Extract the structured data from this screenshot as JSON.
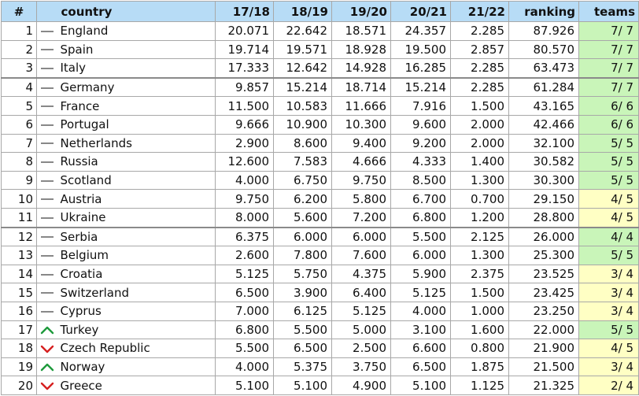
{
  "headers": {
    "num": "#",
    "country": "country",
    "s1718": "17/18",
    "s1819": "18/19",
    "s1920": "19/20",
    "s2021": "20/21",
    "s2122": "21/22",
    "ranking": "ranking",
    "teams": "teams"
  },
  "colors": {
    "header_bg": "#b7dcf6",
    "teams_full": "#c9f5b9",
    "teams_partial": "#ffffc4",
    "trend_same": "#888888",
    "trend_up": "#1e9a3c",
    "trend_down": "#d62020"
  },
  "rows": [
    {
      "num": "1",
      "trend": "same",
      "country": "England",
      "s1718": "20.071",
      "s1819": "22.642",
      "s1920": "18.571",
      "s2021": "24.357",
      "s2122": "2.285",
      "ranking": "87.926",
      "teams": "7/ 7",
      "teams_status": "full"
    },
    {
      "num": "2",
      "trend": "same",
      "country": "Spain",
      "s1718": "19.714",
      "s1819": "19.571",
      "s1920": "18.928",
      "s2021": "19.500",
      "s2122": "2.857",
      "ranking": "80.570",
      "teams": "7/ 7",
      "teams_status": "full"
    },
    {
      "num": "3",
      "trend": "same",
      "country": "Italy",
      "s1718": "17.333",
      "s1819": "12.642",
      "s1920": "14.928",
      "s2021": "16.285",
      "s2122": "2.285",
      "ranking": "63.473",
      "teams": "7/ 7",
      "teams_status": "full"
    },
    {
      "num": "4",
      "trend": "same",
      "country": "Germany",
      "s1718": "9.857",
      "s1819": "15.214",
      "s1920": "18.714",
      "s2021": "15.214",
      "s2122": "2.285",
      "ranking": "61.284",
      "teams": "7/ 7",
      "teams_status": "full"
    },
    {
      "num": "5",
      "trend": "same",
      "country": "France",
      "s1718": "11.500",
      "s1819": "10.583",
      "s1920": "11.666",
      "s2021": "7.916",
      "s2122": "1.500",
      "ranking": "43.165",
      "teams": "6/ 6",
      "teams_status": "full"
    },
    {
      "num": "6",
      "trend": "same",
      "country": "Portugal",
      "s1718": "9.666",
      "s1819": "10.900",
      "s1920": "10.300",
      "s2021": "9.600",
      "s2122": "2.000",
      "ranking": "42.466",
      "teams": "6/ 6",
      "teams_status": "full"
    },
    {
      "num": "7",
      "trend": "same",
      "country": "Netherlands",
      "s1718": "2.900",
      "s1819": "8.600",
      "s1920": "9.400",
      "s2021": "9.200",
      "s2122": "2.000",
      "ranking": "32.100",
      "teams": "5/ 5",
      "teams_status": "full"
    },
    {
      "num": "8",
      "trend": "same",
      "country": "Russia",
      "s1718": "12.600",
      "s1819": "7.583",
      "s1920": "4.666",
      "s2021": "4.333",
      "s2122": "1.400",
      "ranking": "30.582",
      "teams": "5/ 5",
      "teams_status": "full"
    },
    {
      "num": "9",
      "trend": "same",
      "country": "Scotland",
      "s1718": "4.000",
      "s1819": "6.750",
      "s1920": "9.750",
      "s2021": "8.500",
      "s2122": "1.300",
      "ranking": "30.300",
      "teams": "5/ 5",
      "teams_status": "full"
    },
    {
      "num": "10",
      "trend": "same",
      "country": "Austria",
      "s1718": "9.750",
      "s1819": "6.200",
      "s1920": "5.800",
      "s2021": "6.700",
      "s2122": "0.700",
      "ranking": "29.150",
      "teams": "4/ 5",
      "teams_status": "partial"
    },
    {
      "num": "11",
      "trend": "same",
      "country": "Ukraine",
      "s1718": "8.000",
      "s1819": "5.600",
      "s1920": "7.200",
      "s2021": "6.800",
      "s2122": "1.200",
      "ranking": "28.800",
      "teams": "4/ 5",
      "teams_status": "partial"
    },
    {
      "num": "12",
      "trend": "same",
      "country": "Serbia",
      "s1718": "6.375",
      "s1819": "6.000",
      "s1920": "6.000",
      "s2021": "5.500",
      "s2122": "2.125",
      "ranking": "26.000",
      "teams": "4/ 4",
      "teams_status": "full"
    },
    {
      "num": "13",
      "trend": "same",
      "country": "Belgium",
      "s1718": "2.600",
      "s1819": "7.800",
      "s1920": "7.600",
      "s2021": "6.000",
      "s2122": "1.300",
      "ranking": "25.300",
      "teams": "5/ 5",
      "teams_status": "full"
    },
    {
      "num": "14",
      "trend": "same",
      "country": "Croatia",
      "s1718": "5.125",
      "s1819": "5.750",
      "s1920": "4.375",
      "s2021": "5.900",
      "s2122": "2.375",
      "ranking": "23.525",
      "teams": "3/ 4",
      "teams_status": "partial"
    },
    {
      "num": "15",
      "trend": "same",
      "country": "Switzerland",
      "s1718": "6.500",
      "s1819": "3.900",
      "s1920": "6.400",
      "s2021": "5.125",
      "s2122": "1.500",
      "ranking": "23.425",
      "teams": "3/ 4",
      "teams_status": "partial"
    },
    {
      "num": "16",
      "trend": "same",
      "country": "Cyprus",
      "s1718": "7.000",
      "s1819": "6.125",
      "s1920": "5.125",
      "s2021": "4.000",
      "s2122": "1.000",
      "ranking": "23.250",
      "teams": "3/ 4",
      "teams_status": "partial"
    },
    {
      "num": "17",
      "trend": "up",
      "country": "Turkey",
      "s1718": "6.800",
      "s1819": "5.500",
      "s1920": "5.000",
      "s2021": "3.100",
      "s2122": "1.600",
      "ranking": "22.000",
      "teams": "5/ 5",
      "teams_status": "full"
    },
    {
      "num": "18",
      "trend": "down",
      "country": "Czech Republic",
      "s1718": "5.500",
      "s1819": "6.500",
      "s1920": "2.500",
      "s2021": "6.600",
      "s2122": "0.800",
      "ranking": "21.900",
      "teams": "4/ 5",
      "teams_status": "partial"
    },
    {
      "num": "19",
      "trend": "up",
      "country": "Norway",
      "s1718": "4.000",
      "s1819": "5.375",
      "s1920": "3.750",
      "s2021": "6.500",
      "s2122": "1.875",
      "ranking": "21.500",
      "teams": "3/ 4",
      "teams_status": "partial"
    },
    {
      "num": "20",
      "trend": "down",
      "country": "Greece",
      "s1718": "5.100",
      "s1819": "5.100",
      "s1920": "4.900",
      "s2021": "5.100",
      "s2122": "1.125",
      "ranking": "21.325",
      "teams": "2/ 4",
      "teams_status": "partial"
    }
  ]
}
